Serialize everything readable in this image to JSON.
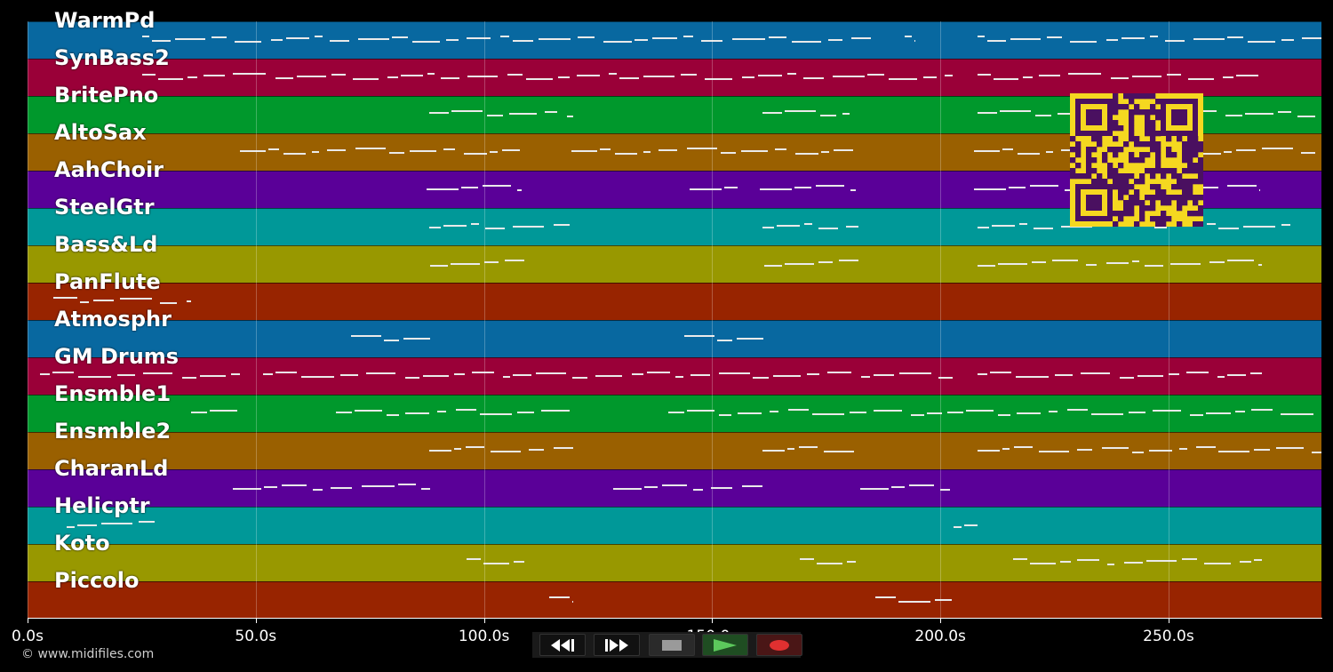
{
  "tracks": [
    {
      "name": "WarmPd",
      "color": "#0868a0"
    },
    {
      "name": "SynBass2",
      "color": "#9a0038"
    },
    {
      "name": "BritePno",
      "color": "#00982c"
    },
    {
      "name": "AltoSax",
      "color": "#9a6000"
    },
    {
      "name": "AahChoir",
      "color": "#5a0098"
    },
    {
      "name": "SteelGtr",
      "color": "#009898"
    },
    {
      "name": "Bass&Ld",
      "color": "#989800"
    },
    {
      "name": "PanFlute",
      "color": "#982400"
    },
    {
      "name": "Atmosphr",
      "color": "#0868a0"
    },
    {
      "name": "GM Drums",
      "color": "#9a0038"
    },
    {
      "name": "Ensmble1",
      "color": "#00982c"
    },
    {
      "name": "Ensmble2",
      "color": "#9a6000"
    },
    {
      "name": "CharanLd",
      "color": "#5a0098"
    },
    {
      "name": "Helicptr",
      "color": "#009898"
    },
    {
      "name": "Koto",
      "color": "#989800"
    },
    {
      "name": "Piccolo",
      "color": "#982400"
    }
  ],
  "timeline": {
    "tick_labels": [
      "0.0s",
      "50.0s",
      "100.0s",
      "150.0s",
      "200.0s",
      "250.0s"
    ],
    "tick_seconds": [
      0,
      50,
      100,
      150,
      200,
      250
    ],
    "max_seconds": 283.5
  },
  "copyright": "© www.midifiles.com",
  "controls": [
    {
      "icon": "rewind-icon"
    },
    {
      "icon": "fast-forward-icon"
    },
    {
      "icon": "stop-icon"
    },
    {
      "icon": "play-icon"
    },
    {
      "icon": "record-icon"
    }
  ],
  "qr": {
    "color_fg": "#4a1060",
    "color_bg": "#f5d820"
  }
}
